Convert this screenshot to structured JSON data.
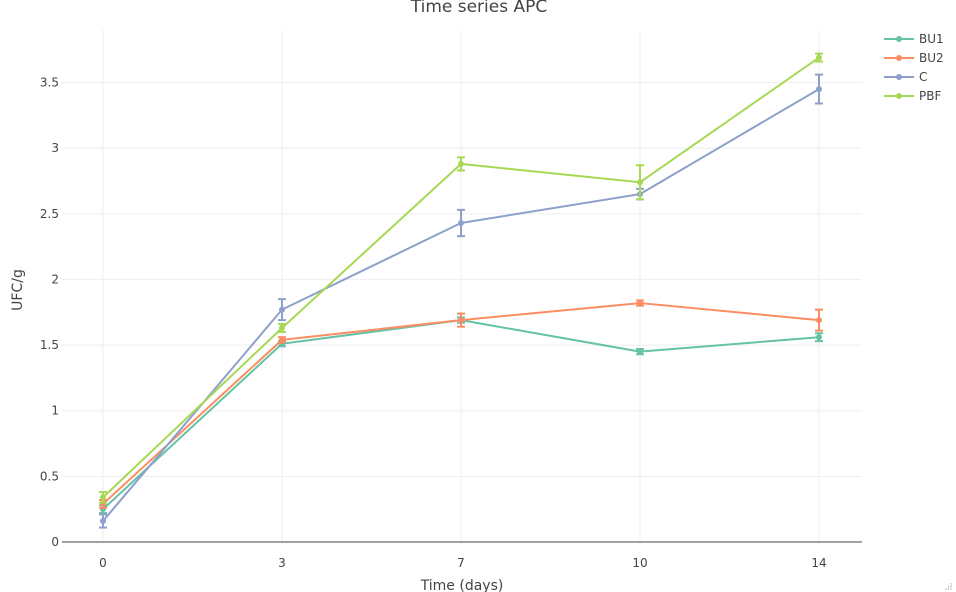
{
  "chart_data": {
    "type": "line",
    "title": "Time series APC",
    "xlabel": "Time (days)",
    "ylabel": "UFC/g",
    "categories": [
      "0",
      "3",
      "7",
      "10",
      "14"
    ],
    "ylim": [
      0,
      3.9
    ],
    "yticks": [
      0,
      0.5,
      1,
      1.5,
      2,
      2.5,
      3,
      3.5
    ],
    "ytick_labels": [
      "0",
      "0.5",
      "1",
      "1.5",
      "2",
      "2.5",
      "3",
      "3.5"
    ],
    "grid": true,
    "legend": "top-right",
    "series": [
      {
        "name": "BU1",
        "color": "#66c2a5",
        "values": [
          0.25,
          1.51,
          1.69,
          1.45,
          1.56
        ],
        "errors": [
          0.03,
          0.02,
          0.02,
          0.02,
          0.03
        ]
      },
      {
        "name": "BU2",
        "color": "#fc8d62",
        "values": [
          0.29,
          1.54,
          1.69,
          1.82,
          1.69
        ],
        "errors": [
          0.03,
          0.02,
          0.05,
          0.02,
          0.08
        ]
      },
      {
        "name": "C",
        "color": "#8da0cb",
        "values": [
          0.16,
          1.77,
          2.43,
          2.65,
          3.45
        ],
        "errors": [
          0.05,
          0.08,
          0.1,
          0.04,
          0.11
        ]
      },
      {
        "name": "PBF",
        "color": "#a6d854",
        "values": [
          0.34,
          1.63,
          2.88,
          2.74,
          3.69
        ],
        "errors": [
          0.04,
          0.03,
          0.05,
          0.13,
          0.03
        ]
      }
    ]
  }
}
